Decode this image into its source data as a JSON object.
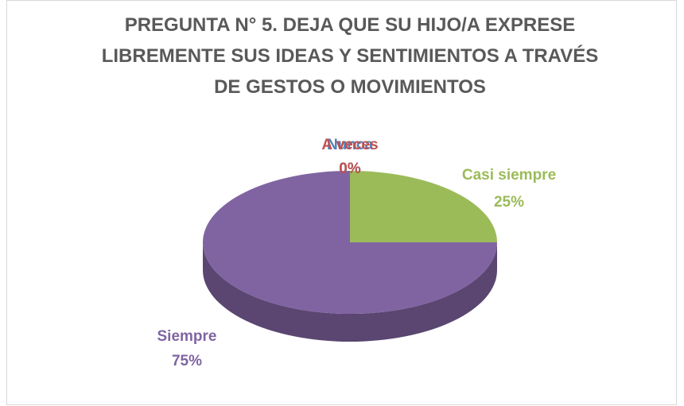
{
  "chart_data": {
    "type": "pie",
    "title": "PREGUNTA N° 5. DEJA QUE SU HIJO/A EXPRESE LIBREMENTE SUS IDEAS Y SENTIMIENTOS A TRAVÉS DE GESTOS O MOVIMIENTOS",
    "categories": [
      "Nunca",
      "A veces",
      "Casi siempre",
      "Siempre"
    ],
    "values": [
      0,
      0,
      25,
      75
    ],
    "value_labels": [
      "0%",
      "0%",
      "25%",
      "75%"
    ],
    "colors": [
      "#4f81bd",
      "#c0504d",
      "#9bbb59",
      "#8064a2"
    ]
  }
}
